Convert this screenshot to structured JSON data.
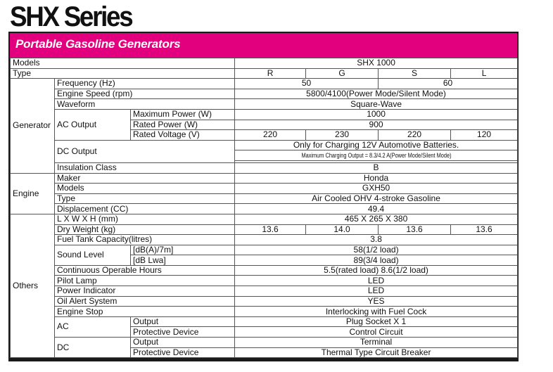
{
  "title": "SHX Series",
  "band_title": "Portable Gasoline Generators",
  "models_label": "Models",
  "model_name": "SHX 1000",
  "type_label": "Type",
  "types": [
    "R",
    "G",
    "S",
    "L"
  ],
  "generator": {
    "section": "Generator",
    "frequency_label": "Frequency (Hz)",
    "frequency_values": [
      "50",
      "60"
    ],
    "engine_speed_label": "Engine Speed (rpm)",
    "engine_speed_value": "5800/4100(Power Mode/Silent Mode)",
    "waveform_label": "Waveform",
    "waveform_value": "Square-Wave",
    "ac_output_label": "AC Output",
    "max_power_label": "Maximum Power (W)",
    "max_power_value": "1000",
    "rated_power_label": "Rated Power (W)",
    "rated_power_value": "900",
    "rated_voltage_label": "Rated Voltage (V)",
    "rated_voltage_values": [
      "220",
      "230",
      "220",
      "120"
    ],
    "dc_output_label": "DC Output",
    "dc_output_line1": "Only for Charging 12V Automotive Batteries.",
    "dc_output_line2": "Maximum Charging Output = 8.3/4.2 A(Power Mode/Silent Mode)",
    "insulation_label": "Insulation Class",
    "insulation_value": "B"
  },
  "engine": {
    "section": "Engine",
    "maker_label": "Maker",
    "maker_value": "Honda",
    "models_label": "Models",
    "models_value": "GXH50",
    "type_label": "Type",
    "type_value": "Air Cooled OHV 4-stroke Gasoline",
    "displacement_label": "Displacement (CC)",
    "displacement_value": "49.4"
  },
  "others": {
    "section": "Others",
    "dimensions_label": "L X W X H (mm)",
    "dimensions_value": "465 X 265 X 380",
    "dry_weight_label": "Dry Weight (kg)",
    "dry_weight_values": [
      "13.6",
      "14.0",
      "13.6",
      "13.6"
    ],
    "fuel_tank_label": "Fuel Tank Capacity(litres)",
    "fuel_tank_value": "3.8",
    "sound_level_label": "Sound Level",
    "sound_dba_label": "[dB(A)/7m]",
    "sound_dba_value": "58(1/2 load)",
    "sound_lwa_label": "[dB Lwa]",
    "sound_lwa_value": "89(3/4 load)",
    "continuous_hours_label": "Continuous Operable Hours",
    "continuous_hours_value": "5.5(rated load)  8.6(1/2 load)",
    "pilot_lamp_label": "Pilot Lamp",
    "pilot_lamp_value": "LED",
    "power_indicator_label": "Power Indicator",
    "power_indicator_value": "LED",
    "oil_alert_label": "Oil Alert System",
    "oil_alert_value": "YES",
    "engine_stop_label": "Engine Stop",
    "engine_stop_value": "Interlocking with Fuel Cock",
    "ac_label": "AC",
    "ac_output_label": "Output",
    "ac_output_value": "Plug Socket X 1",
    "ac_protective_label": "Protective Device",
    "ac_protective_value": "Control Circuit",
    "dc_label": "DC",
    "dc_output_label": "Output",
    "dc_output_value": "Terminal",
    "dc_protective_label": "Protective Device",
    "dc_protective_value": "Thermal Type Circuit Breaker"
  }
}
